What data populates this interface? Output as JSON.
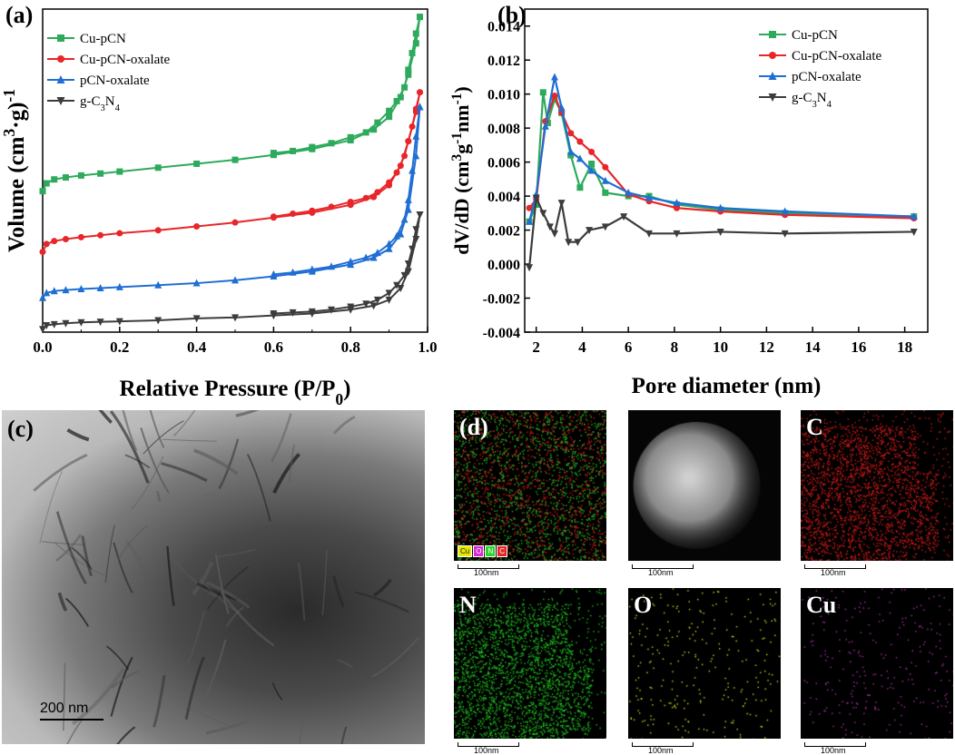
{
  "panel_labels": {
    "a": "(a)",
    "b": "(b)",
    "c": "(c)",
    "d": "(d)"
  },
  "colors": {
    "cu_pcn": "#2eaa5c",
    "cu_pcn_oxalate": "#e8262a",
    "pcn_oxalate": "#1f6ed4",
    "gc3n4": "#3c3c3c"
  },
  "chart_data": [
    {
      "type": "line",
      "id": "isotherm",
      "xlabel": "Relative Pressure (P/P",
      "xlabel_sub": "0",
      "xlabel_end": ")",
      "ylabel": "Volume (cm",
      "ylabel_sup": "3",
      "ylabel_mid": "·g)",
      "ylabel_sup2": "-1",
      "xlim": [
        0.0,
        1.0
      ],
      "ylim": [
        0,
        330
      ],
      "xticks": [
        "0.0",
        "0.2",
        "0.4",
        "0.6",
        "0.8",
        "1.0"
      ],
      "y_axis_tick_labels": false,
      "legend": "top-left",
      "series": [
        {
          "name": "Cu-pCN",
          "marker": "square",
          "color": "#2eaa5c",
          "adsorption": [
            [
              0.0,
              144
            ],
            [
              0.01,
              152
            ],
            [
              0.03,
              156
            ],
            [
              0.06,
              158
            ],
            [
              0.1,
              160
            ],
            [
              0.15,
              162
            ],
            [
              0.2,
              164
            ],
            [
              0.3,
              168
            ],
            [
              0.4,
              172
            ],
            [
              0.5,
              176
            ],
            [
              0.6,
              181
            ],
            [
              0.7,
              187
            ],
            [
              0.8,
              196
            ],
            [
              0.86,
              207
            ],
            [
              0.9,
              220
            ],
            [
              0.93,
              240
            ],
            [
              0.95,
              263
            ],
            [
              0.97,
              295
            ],
            [
              0.98,
              322
            ]
          ],
          "desorption": [
            [
              0.98,
              322
            ],
            [
              0.97,
              305
            ],
            [
              0.96,
              285
            ],
            [
              0.95,
              268
            ],
            [
              0.94,
              250
            ],
            [
              0.92,
              236
            ],
            [
              0.9,
              226
            ],
            [
              0.87,
              214
            ],
            [
              0.84,
              204
            ],
            [
              0.8,
              199
            ],
            [
              0.75,
              193
            ],
            [
              0.7,
              189
            ],
            [
              0.65,
              185
            ],
            [
              0.6,
              183
            ]
          ]
        },
        {
          "name": "Cu-pCN-oxalate",
          "marker": "circle",
          "color": "#e8262a",
          "adsorption": [
            [
              0.0,
              82
            ],
            [
              0.01,
              90
            ],
            [
              0.03,
              93
            ],
            [
              0.06,
              95
            ],
            [
              0.1,
              97
            ],
            [
              0.15,
              99
            ],
            [
              0.2,
              101
            ],
            [
              0.3,
              104
            ],
            [
              0.4,
              108
            ],
            [
              0.5,
              112
            ],
            [
              0.6,
              117
            ],
            [
              0.7,
              122
            ],
            [
              0.8,
              130
            ],
            [
              0.86,
              138
            ],
            [
              0.9,
              150
            ],
            [
              0.93,
              170
            ],
            [
              0.95,
              195
            ],
            [
              0.97,
              225
            ],
            [
              0.98,
              245
            ]
          ],
          "desorption": [
            [
              0.98,
              245
            ],
            [
              0.97,
              228
            ],
            [
              0.96,
              210
            ],
            [
              0.95,
              195
            ],
            [
              0.94,
              180
            ],
            [
              0.92,
              163
            ],
            [
              0.9,
              153
            ],
            [
              0.87,
              143
            ],
            [
              0.84,
              137
            ],
            [
              0.8,
              133
            ],
            [
              0.75,
              128
            ],
            [
              0.7,
              124
            ],
            [
              0.65,
              121
            ],
            [
              0.6,
              118
            ]
          ]
        },
        {
          "name": "pCN-oxalate",
          "marker": "triangle-up",
          "color": "#1f6ed4",
          "adsorption": [
            [
              0.0,
              35
            ],
            [
              0.01,
              40
            ],
            [
              0.03,
              42
            ],
            [
              0.06,
              43
            ],
            [
              0.1,
              44
            ],
            [
              0.15,
              45
            ],
            [
              0.2,
              46
            ],
            [
              0.3,
              48
            ],
            [
              0.4,
              50
            ],
            [
              0.5,
              53
            ],
            [
              0.6,
              57
            ],
            [
              0.7,
              62
            ],
            [
              0.8,
              69
            ],
            [
              0.86,
              76
            ],
            [
              0.9,
              85
            ],
            [
              0.93,
              100
            ],
            [
              0.95,
              125
            ],
            [
              0.97,
              180
            ],
            [
              0.98,
              230
            ]
          ],
          "desorption": [
            [
              0.98,
              230
            ],
            [
              0.97,
              200
            ],
            [
              0.96,
              165
            ],
            [
              0.95,
              135
            ],
            [
              0.94,
              115
            ],
            [
              0.92,
              98
            ],
            [
              0.9,
              90
            ],
            [
              0.87,
              81
            ],
            [
              0.84,
              76
            ],
            [
              0.8,
              72
            ],
            [
              0.75,
              67
            ],
            [
              0.7,
              64
            ],
            [
              0.65,
              61
            ],
            [
              0.6,
              59
            ]
          ]
        },
        {
          "name": "g-C",
          "name_sub1": "3",
          "name_mid": "N",
          "name_sub2": "4",
          "marker": "triangle-down",
          "color": "#3c3c3c",
          "adsorption": [
            [
              0.0,
              3
            ],
            [
              0.01,
              7
            ],
            [
              0.03,
              8
            ],
            [
              0.06,
              9
            ],
            [
              0.1,
              10
            ],
            [
              0.15,
              10.5
            ],
            [
              0.2,
              11
            ],
            [
              0.3,
              12
            ],
            [
              0.4,
              14
            ],
            [
              0.5,
              15
            ],
            [
              0.6,
              17
            ],
            [
              0.7,
              19
            ],
            [
              0.8,
              23
            ],
            [
              0.86,
              27
            ],
            [
              0.9,
              33
            ],
            [
              0.93,
              45
            ],
            [
              0.95,
              62
            ],
            [
              0.97,
              95
            ],
            [
              0.98,
              120
            ]
          ],
          "desorption": [
            [
              0.98,
              120
            ],
            [
              0.97,
              105
            ],
            [
              0.96,
              85
            ],
            [
              0.95,
              70
            ],
            [
              0.94,
              58
            ],
            [
              0.92,
              48
            ],
            [
              0.9,
              40
            ],
            [
              0.87,
              33
            ],
            [
              0.84,
              29
            ],
            [
              0.8,
              26
            ],
            [
              0.75,
              23
            ],
            [
              0.7,
              21
            ],
            [
              0.65,
              20
            ],
            [
              0.6,
              19
            ]
          ]
        }
      ]
    },
    {
      "type": "line",
      "id": "psd",
      "xlabel": "Pore diameter (nm)",
      "ylabel": "dV/dD (cm",
      "ylabel_sup": "3",
      "ylabel_mid": "g",
      "ylabel_sup2": "-1",
      "ylabel_mid2": "nm",
      "ylabel_sup3": "-1",
      "ylabel_end": ")",
      "xlim": [
        1.5,
        19.0
      ],
      "ylim": [
        -0.004,
        0.015
      ],
      "xticks": [
        "2",
        "4",
        "6",
        "8",
        "10",
        "12",
        "14",
        "16",
        "18"
      ],
      "yticks": [
        "-0.004",
        "-0.002",
        "0.000",
        "0.002",
        "0.004",
        "0.006",
        "0.008",
        "0.010",
        "0.012",
        "0.014"
      ],
      "legend": "top-right",
      "series": [
        {
          "name": "Cu-pCN",
          "marker": "square",
          "color": "#2eaa5c",
          "points": [
            [
              1.7,
              0.0025
            ],
            [
              2.0,
              0.0035
            ],
            [
              2.3,
              0.0101
            ],
            [
              2.5,
              0.0083
            ],
            [
              2.8,
              0.0097
            ],
            [
              3.1,
              0.0089
            ],
            [
              3.5,
              0.0064
            ],
            [
              3.9,
              0.0045
            ],
            [
              4.4,
              0.0059
            ],
            [
              5.0,
              0.0042
            ],
            [
              6.0,
              0.004
            ],
            [
              6.9,
              0.004
            ],
            [
              8.1,
              0.0035
            ],
            [
              10.0,
              0.0032
            ],
            [
              12.8,
              0.003
            ],
            [
              18.4,
              0.0028
            ]
          ]
        },
        {
          "name": "Cu-pCN-oxalate",
          "marker": "circle",
          "color": "#e8262a",
          "points": [
            [
              1.7,
              0.0033
            ],
            [
              2.0,
              0.0038
            ],
            [
              2.4,
              0.0084
            ],
            [
              2.8,
              0.0099
            ],
            [
              3.1,
              0.0089
            ],
            [
              3.5,
              0.0077
            ],
            [
              3.9,
              0.0072
            ],
            [
              4.4,
              0.0066
            ],
            [
              5.0,
              0.0057
            ],
            [
              6.0,
              0.0041
            ],
            [
              6.9,
              0.0037
            ],
            [
              8.1,
              0.0033
            ],
            [
              10.0,
              0.0031
            ],
            [
              12.8,
              0.0029
            ],
            [
              18.4,
              0.0027
            ]
          ]
        },
        {
          "name": "pCN-oxalate",
          "marker": "triangle-up",
          "color": "#1f6ed4",
          "points": [
            [
              1.7,
              0.0025
            ],
            [
              2.0,
              0.0041
            ],
            [
              2.4,
              0.0081
            ],
            [
              2.8,
              0.011
            ],
            [
              3.1,
              0.0092
            ],
            [
              3.5,
              0.0066
            ],
            [
              3.9,
              0.0062
            ],
            [
              4.4,
              0.0055
            ],
            [
              5.0,
              0.0049
            ],
            [
              6.0,
              0.0042
            ],
            [
              6.9,
              0.0039
            ],
            [
              8.1,
              0.0036
            ],
            [
              10.0,
              0.0033
            ],
            [
              12.8,
              0.0031
            ],
            [
              18.4,
              0.0028
            ]
          ]
        },
        {
          "name": "g-C",
          "name_sub1": "3",
          "name_mid": "N",
          "name_sub2": "4",
          "marker": "triangle-down",
          "color": "#3c3c3c",
          "points": [
            [
              1.7,
              -0.0002
            ],
            [
              2.0,
              0.0039
            ],
            [
              2.3,
              0.003
            ],
            [
              2.6,
              0.0022
            ],
            [
              2.8,
              0.0018
            ],
            [
              3.1,
              0.0036
            ],
            [
              3.4,
              0.0013
            ],
            [
              3.8,
              0.0013
            ],
            [
              4.3,
              0.002
            ],
            [
              5.0,
              0.0022
            ],
            [
              5.8,
              0.0028
            ],
            [
              6.9,
              0.0018
            ],
            [
              8.1,
              0.0018
            ],
            [
              10.0,
              0.0019
            ],
            [
              12.8,
              0.0018
            ],
            [
              18.4,
              0.0019
            ]
          ]
        }
      ]
    }
  ],
  "tem": {
    "scale_label": "200 nm"
  },
  "eds": {
    "scale_label": "100nm",
    "chips": [
      "Cu",
      "O",
      "N",
      "C"
    ],
    "chip_colors": [
      "#e6e600",
      "#d52bd5",
      "#2bd52b",
      "#e8262a"
    ],
    "maps": [
      {
        "label": "",
        "kind": "overlay"
      },
      {
        "label": "",
        "kind": "haadf"
      },
      {
        "label": "C",
        "kind": "element",
        "color": "#d01a1a"
      },
      {
        "label": "N",
        "kind": "element",
        "color": "#20c020"
      },
      {
        "label": "O",
        "kind": "element",
        "color": "#d8d820"
      },
      {
        "label": "Cu",
        "kind": "element",
        "color": "#b030b0"
      }
    ]
  }
}
